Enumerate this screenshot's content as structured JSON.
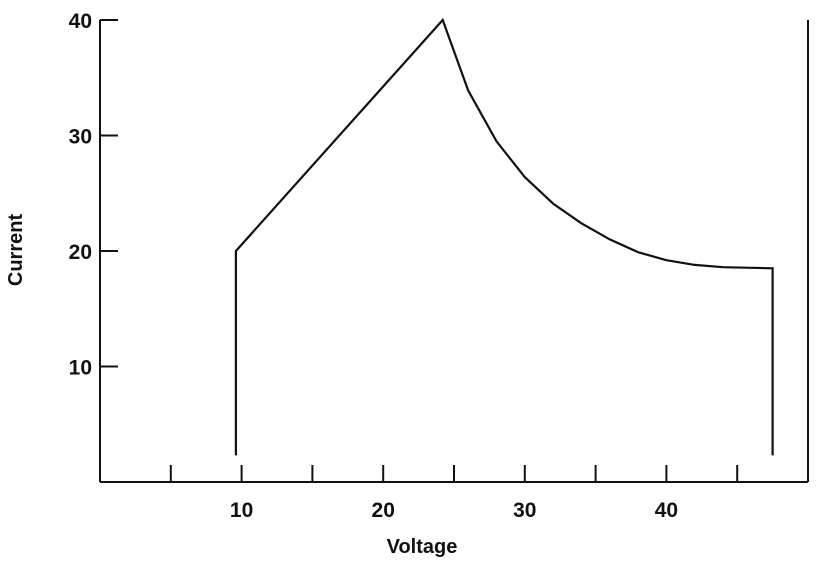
{
  "chart_data": {
    "type": "line",
    "title": "",
    "xlabel": "Voltage",
    "ylabel": "Current",
    "xlim": [
      0,
      50
    ],
    "ylim": [
      0,
      40
    ],
    "grid": false,
    "x_tick_values": [
      5,
      10,
      15,
      20,
      25,
      30,
      35,
      40,
      45
    ],
    "x_tick_labels": [
      {
        "value": 10,
        "label": "10"
      },
      {
        "value": 20,
        "label": "20"
      },
      {
        "value": 30,
        "label": "30"
      },
      {
        "value": 40,
        "label": "40"
      }
    ],
    "y_ticks": [
      {
        "value": 10,
        "label": "10"
      },
      {
        "value": 20,
        "label": "20"
      },
      {
        "value": 30,
        "label": "30"
      },
      {
        "value": 40,
        "label": "40"
      }
    ],
    "series": [
      {
        "x": [
          9.6,
          9.6,
          24.2,
          26,
          28,
          30,
          32,
          34,
          36,
          38,
          40,
          42,
          44,
          47.5,
          47.5
        ],
        "y": [
          2.3,
          20.0,
          40.0,
          33.9,
          29.5,
          26.4,
          24.1,
          22.4,
          21.0,
          19.9,
          19.2,
          18.8,
          18.6,
          18.5,
          2.3
        ]
      }
    ]
  }
}
